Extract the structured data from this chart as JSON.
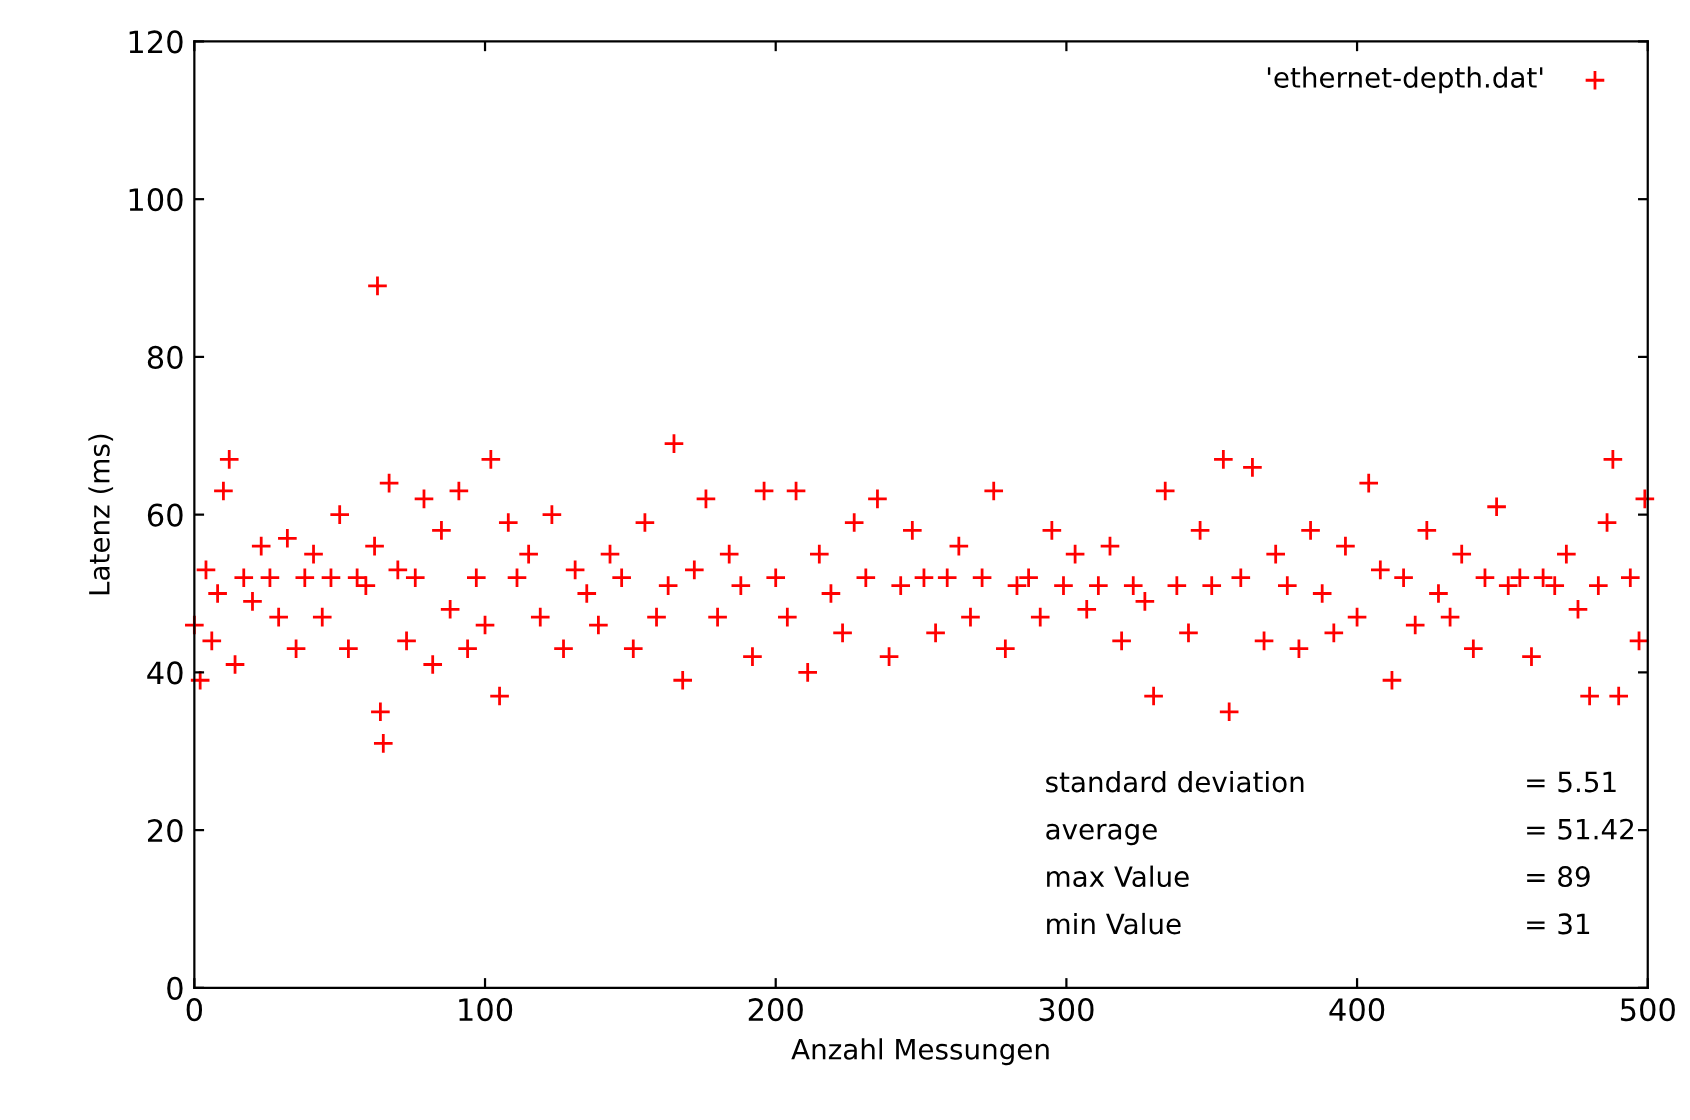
{
  "chart_data": {
    "type": "scatter",
    "xlabel": "Anzahl Messungen",
    "ylabel": "Latenz (ms)",
    "xlim": [
      0,
      500
    ],
    "ylim": [
      0,
      120
    ],
    "xticks": [
      0,
      100,
      200,
      300,
      400,
      500
    ],
    "yticks": [
      0,
      20,
      40,
      60,
      80,
      100,
      120
    ],
    "grid": false,
    "legend": "top right",
    "marker": "cross",
    "series": [
      {
        "name": "'ethernet-depth.dat'",
        "color": "#ff0000",
        "x": [
          0,
          2,
          4,
          6,
          8,
          10,
          12,
          14,
          17,
          20,
          23,
          26,
          29,
          32,
          35,
          38,
          41,
          44,
          47,
          50,
          53,
          56,
          59,
          62,
          63,
          64,
          65,
          67,
          70,
          73,
          76,
          79,
          82,
          85,
          88,
          91,
          94,
          97,
          100,
          102,
          105,
          108,
          111,
          115,
          119,
          123,
          127,
          131,
          135,
          139,
          143,
          147,
          151,
          155,
          159,
          163,
          165,
          168,
          172,
          176,
          180,
          184,
          188,
          192,
          196,
          200,
          204,
          207,
          211,
          215,
          219,
          223,
          227,
          231,
          235,
          239,
          243,
          247,
          251,
          255,
          259,
          263,
          267,
          271,
          275,
          279,
          283,
          287,
          291,
          295,
          299,
          303,
          307,
          311,
          315,
          319,
          323,
          327,
          330,
          334,
          338,
          342,
          346,
          350,
          354,
          356,
          360,
          364,
          368,
          372,
          376,
          380,
          384,
          388,
          392,
          396,
          400,
          404,
          408,
          412,
          416,
          420,
          424,
          428,
          432,
          436,
          440,
          444,
          448,
          452,
          456,
          460,
          464,
          468,
          472,
          476,
          480,
          483,
          486,
          488,
          490,
          494,
          497,
          499
        ],
        "values": [
          46,
          39,
          53,
          44,
          50,
          63,
          67,
          41,
          52,
          49,
          56,
          52,
          47,
          57,
          43,
          52,
          55,
          47,
          52,
          60,
          43,
          52,
          51,
          56,
          89,
          35,
          31,
          64,
          53,
          44,
          52,
          62,
          41,
          58,
          48,
          63,
          43,
          52,
          46,
          67,
          37,
          59,
          52,
          55,
          47,
          60,
          43,
          53,
          50,
          46,
          55,
          52,
          43,
          59,
          47,
          51,
          69,
          39,
          53,
          62,
          47,
          55,
          51,
          42,
          63,
          52,
          47,
          63,
          40,
          55,
          50,
          45,
          59,
          52,
          62,
          42,
          51,
          58,
          52,
          45,
          52,
          56,
          47,
          52,
          63,
          43,
          51,
          52,
          47,
          58,
          51,
          55,
          48,
          51,
          56,
          44,
          51,
          49,
          37,
          63,
          51,
          45,
          58,
          51,
          67,
          35,
          52,
          66,
          44,
          55,
          51,
          43,
          58,
          50,
          45,
          56,
          47,
          64,
          53,
          39,
          52,
          46,
          58,
          50,
          47,
          55,
          43,
          52,
          61,
          51,
          52,
          42,
          52,
          51,
          55,
          48,
          37,
          51,
          59,
          67,
          37,
          52,
          44,
          62
        ]
      }
    ],
    "annotations": [
      "standard deviation",
      "= 5.51",
      "average",
      "= 51.42",
      "max Value",
      "= 89",
      "min Value",
      "= 31"
    ]
  }
}
